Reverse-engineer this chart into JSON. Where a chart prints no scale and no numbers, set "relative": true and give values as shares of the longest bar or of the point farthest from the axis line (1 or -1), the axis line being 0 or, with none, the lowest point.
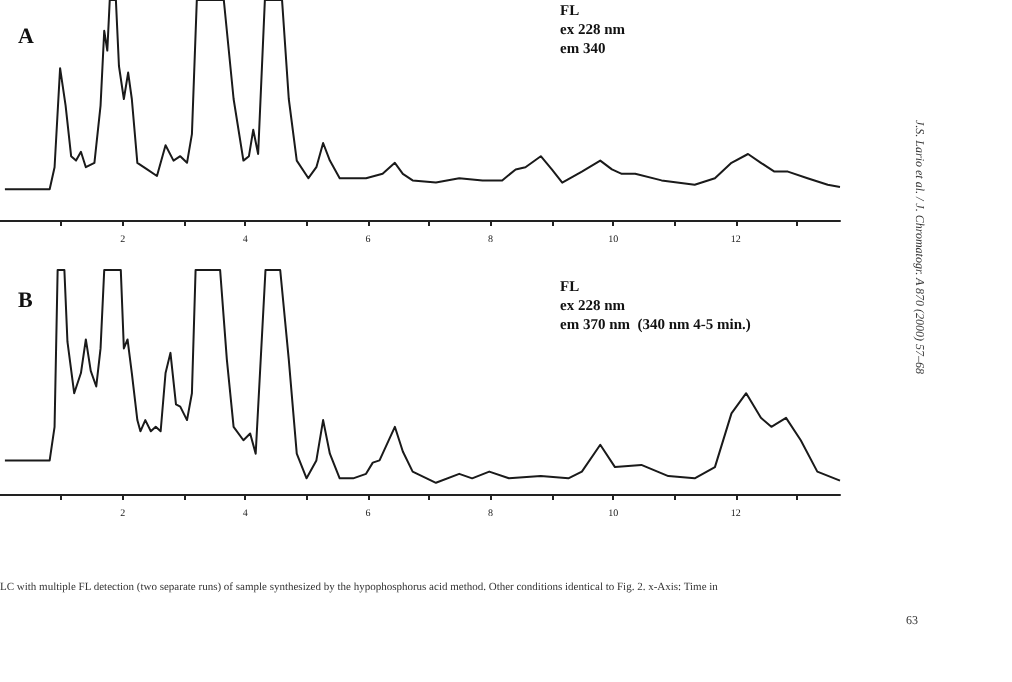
{
  "chart_data": [
    {
      "type": "line",
      "title": "A",
      "relative": true,
      "color": "#1a1a1a",
      "xlim": [
        0,
        13.7
      ],
      "xticks": [
        {
          "value": 1,
          "label": null
        },
        2,
        {
          "value": 3,
          "label": null
        },
        4,
        {
          "value": 5,
          "label": null
        },
        6,
        {
          "value": 7,
          "label": null
        },
        8,
        {
          "value": 9,
          "label": null
        },
        10,
        {
          "value": 11,
          "label": null
        },
        12,
        {
          "value": 13,
          "label": null
        }
      ],
      "x": [
        0.08,
        0.81,
        0.89,
        0.98,
        1.07,
        1.16,
        1.24,
        1.32,
        1.4,
        1.54,
        1.64,
        1.7,
        1.75,
        1.79,
        1.89,
        1.94,
        2.02,
        2.09,
        2.15,
        2.24,
        2.4,
        2.56,
        2.7,
        2.83,
        2.94,
        3.05,
        3.13,
        3.21,
        3.65,
        3.81,
        3.97,
        4.06,
        4.13,
        4.21,
        4.32,
        4.6,
        4.71,
        4.84,
        5.03,
        5.16,
        5.27,
        5.38,
        5.54,
        5.76,
        5.97,
        6.24,
        6.44,
        6.57,
        6.73,
        7.11,
        7.49,
        7.87,
        8.19,
        8.41,
        8.57,
        8.82,
        9.0,
        9.17,
        9.49,
        9.79,
        9.98,
        10.14,
        10.36,
        10.79,
        11.33,
        11.66,
        11.93,
        12.2,
        12.41,
        12.63,
        12.85,
        13.17,
        13.5,
        13.7
      ],
      "values": [
        0.14,
        0.14,
        0.24,
        0.69,
        0.52,
        0.29,
        0.27,
        0.31,
        0.24,
        0.26,
        0.52,
        0.86,
        0.77,
        1,
        1,
        0.7,
        0.55,
        0.67,
        0.55,
        0.26,
        0.23,
        0.2,
        0.34,
        0.27,
        0.29,
        0.26,
        0.39,
        1,
        1,
        0.55,
        0.27,
        0.29,
        0.41,
        0.3,
        1,
        1,
        0.55,
        0.27,
        0.19,
        0.24,
        0.35,
        0.27,
        0.19,
        0.19,
        0.19,
        0.21,
        0.26,
        0.21,
        0.18,
        0.17,
        0.19,
        0.18,
        0.18,
        0.23,
        0.24,
        0.29,
        0.23,
        0.17,
        0.22,
        0.27,
        0.23,
        0.21,
        0.21,
        0.18,
        0.16,
        0.19,
        0.26,
        0.3,
        0.26,
        0.22,
        0.22,
        0.19,
        0.16,
        0.15
      ],
      "annotations": [
        "FL\nex 228 nm\nem 340"
      ]
    },
    {
      "type": "line",
      "title": "B",
      "relative": true,
      "color": "#1a1a1a",
      "xlim": [
        0,
        13.7
      ],
      "xticks": [
        {
          "value": 1,
          "label": null
        },
        2,
        {
          "value": 3,
          "label": null
        },
        4,
        {
          "value": 5,
          "label": null
        },
        6,
        {
          "value": 7,
          "label": null
        },
        8,
        {
          "value": 9,
          "label": null
        },
        10,
        {
          "value": 11,
          "label": null
        },
        12,
        {
          "value": 13,
          "label": null
        }
      ],
      "x": [
        0.08,
        0.81,
        0.89,
        0.94,
        1.05,
        1.1,
        1.21,
        1.32,
        1.4,
        1.48,
        1.57,
        1.64,
        1.7,
        1.97,
        2.02,
        2.08,
        2.15,
        2.24,
        2.29,
        2.37,
        2.46,
        2.54,
        2.62,
        2.7,
        2.78,
        2.87,
        2.94,
        3.05,
        3.13,
        3.19,
        3.59,
        3.7,
        3.81,
        3.97,
        4.08,
        4.17,
        4.33,
        4.57,
        4.71,
        4.84,
        5.0,
        5.16,
        5.27,
        5.38,
        5.54,
        5.76,
        5.97,
        6.08,
        6.19,
        6.44,
        6.57,
        6.73,
        7.11,
        7.49,
        7.7,
        7.98,
        8.3,
        8.82,
        9.27,
        9.49,
        9.79,
        10.03,
        10.46,
        10.9,
        11.33,
        11.66,
        11.93,
        12.17,
        12.41,
        12.58,
        12.82,
        13.06,
        13.33,
        13.7
      ],
      "values": [
        0.15,
        0.15,
        0.3,
        1,
        1,
        0.68,
        0.45,
        0.54,
        0.69,
        0.55,
        0.48,
        0.65,
        1,
        1,
        0.65,
        0.69,
        0.54,
        0.33,
        0.28,
        0.33,
        0.28,
        0.3,
        0.28,
        0.54,
        0.63,
        0.4,
        0.39,
        0.33,
        0.45,
        1,
        1,
        0.6,
        0.3,
        0.24,
        0.27,
        0.18,
        1,
        1,
        0.6,
        0.18,
        0.07,
        0.15,
        0.33,
        0.18,
        0.07,
        0.07,
        0.09,
        0.14,
        0.15,
        0.3,
        0.19,
        0.1,
        0.05,
        0.09,
        0.07,
        0.1,
        0.07,
        0.08,
        0.07,
        0.1,
        0.22,
        0.12,
        0.13,
        0.08,
        0.07,
        0.12,
        0.36,
        0.45,
        0.34,
        0.3,
        0.34,
        0.24,
        0.1,
        0.06
      ],
      "annotations": [
        "FL\nex 228 nm\nem 370 nm  (340 nm 4-5 min.)",
        "LC with multiple FL detection (two separate runs) of sample synthesized by the hypophosphorus acid method. Other conditions identical to Fig. 2. x-Axis: Time in",
        "J.S. Lario et al. / J. Chromatogr. A 870 (2000) 57–68",
        "63"
      ]
    }
  ]
}
